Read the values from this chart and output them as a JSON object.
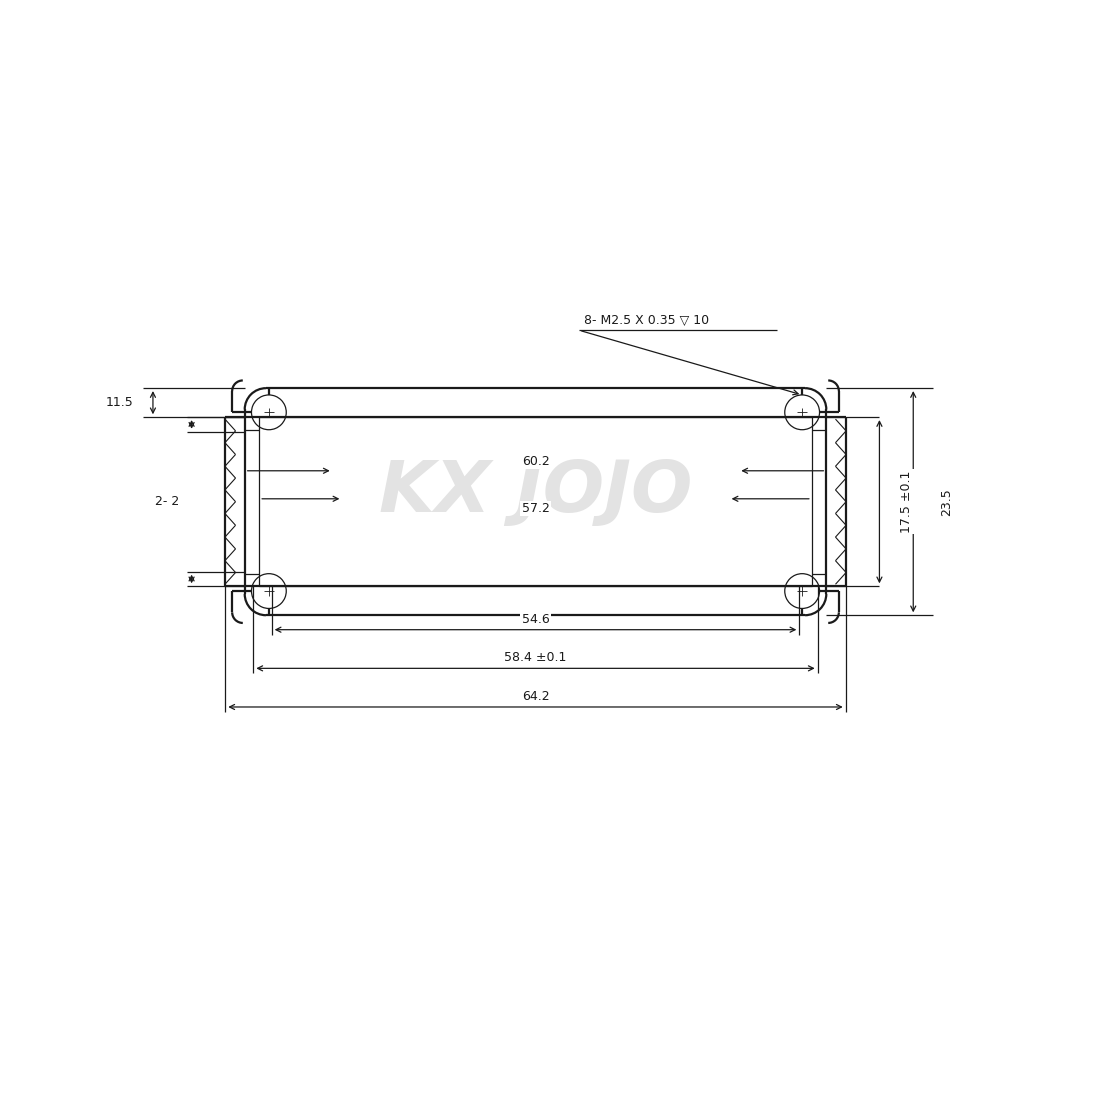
{
  "bg_color": "#ffffff",
  "line_color": "#1a1a1a",
  "watermark_color": "#cccccc",
  "watermark_text": "KX JOJO",
  "lw_main": 1.6,
  "lw_thin": 0.9,
  "lw_dim": 0.9,
  "annotations": {
    "top_note": "8- M2.5 X 0.35 ▽ 10",
    "dim_60_2": "60.2",
    "dim_57_2": "57.2",
    "dim_54_6": "54.6",
    "dim_58_4": "58.4 ±0.1",
    "dim_64_2": "64.2",
    "dim_23_5": "23.5",
    "dim_17_5": "17.5 ±0.1",
    "dim_11_5": "11.5",
    "dim_2": "2- 2"
  }
}
